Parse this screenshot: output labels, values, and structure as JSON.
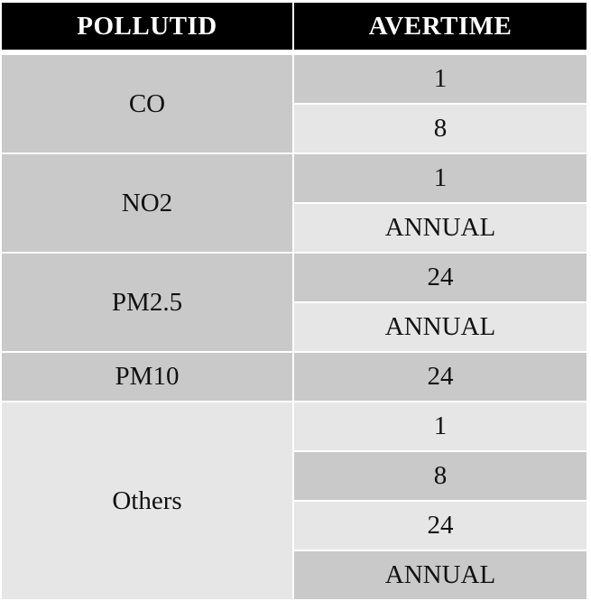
{
  "table": {
    "headers": [
      "POLLUTID",
      "AVERTIME"
    ],
    "groups": [
      {
        "pollutant": "CO",
        "times": [
          "1",
          "8"
        ]
      },
      {
        "pollutant": "NO2",
        "times": [
          "1",
          "ANNUAL"
        ]
      },
      {
        "pollutant": "PM2.5",
        "times": [
          "24",
          "ANNUAL"
        ]
      },
      {
        "pollutant": "PM10",
        "times": [
          "24"
        ]
      },
      {
        "pollutant": "Others",
        "times": [
          "1",
          "8",
          "24",
          "ANNUAL"
        ]
      }
    ]
  },
  "colors": {
    "header_bg": "#000000",
    "header_text": "#ffffff",
    "row_dark": "#c9c9c9",
    "row_light": "#e6e6e6"
  }
}
